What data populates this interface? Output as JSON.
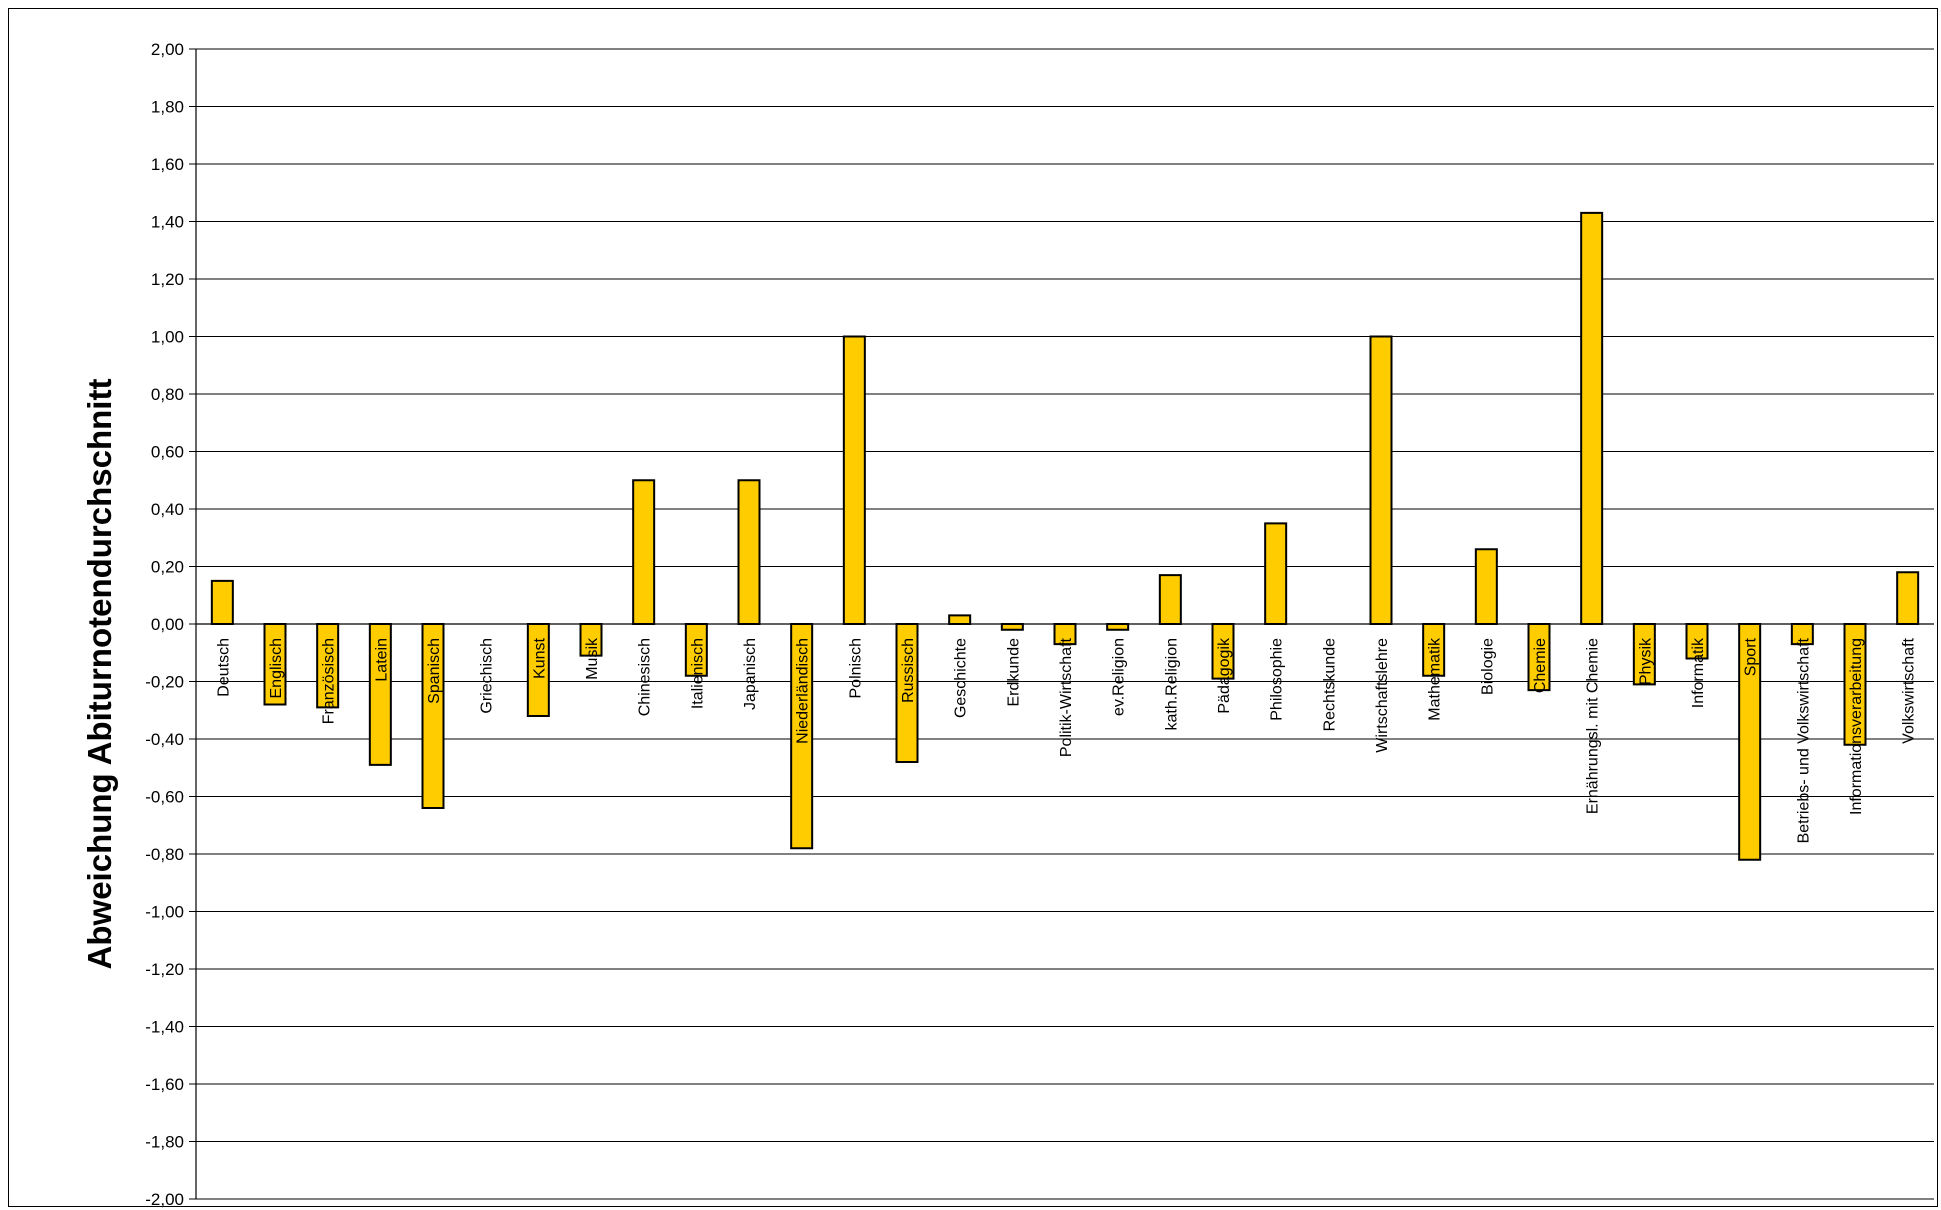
{
  "chart_data": {
    "type": "bar",
    "ylabel": "Abweichung Abiturnotendurchschnitt",
    "ylim": [
      -2.0,
      2.0
    ],
    "ytick_step": 0.2,
    "grid": true,
    "bar_color": "#FFCC00",
    "bar_edge_color": "#000000",
    "categories": [
      "Deutsch",
      "Englisch",
      "Französisch",
      "Latein",
      "Spanisch",
      "Griechisch",
      "Kunst",
      "Musik",
      "Chinesisch",
      "Italienisch",
      "Japanisch",
      "Niederländisch",
      "Polnisch",
      "Russisch",
      "Geschichte",
      "Erdkunde",
      "Politik-Wirtschaft",
      "ev.Religion",
      "kath.Religion",
      "Pädagogik",
      "Philosophie",
      "Rechtskunde",
      "Wirtschaftslehre",
      "Mathematik",
      "Biologie",
      "Chemie",
      "Ernährungsl. mit Chemie",
      "Physik",
      "Informatik",
      "Sport",
      "Betriebs- und Volkswirtschaft",
      "Informationsverarbeitung",
      "Volkswirtschaft"
    ],
    "values": [
      0.15,
      -0.28,
      -0.29,
      -0.49,
      -0.64,
      0.0,
      -0.32,
      -0.11,
      0.5,
      -0.18,
      0.5,
      -0.78,
      1.0,
      -0.48,
      0.03,
      -0.02,
      -0.07,
      -0.02,
      0.17,
      -0.19,
      0.35,
      0.0,
      1.0,
      -0.18,
      0.26,
      -0.23,
      1.43,
      -0.21,
      -0.12,
      -0.82,
      -0.07,
      -0.42,
      0.18
    ]
  }
}
